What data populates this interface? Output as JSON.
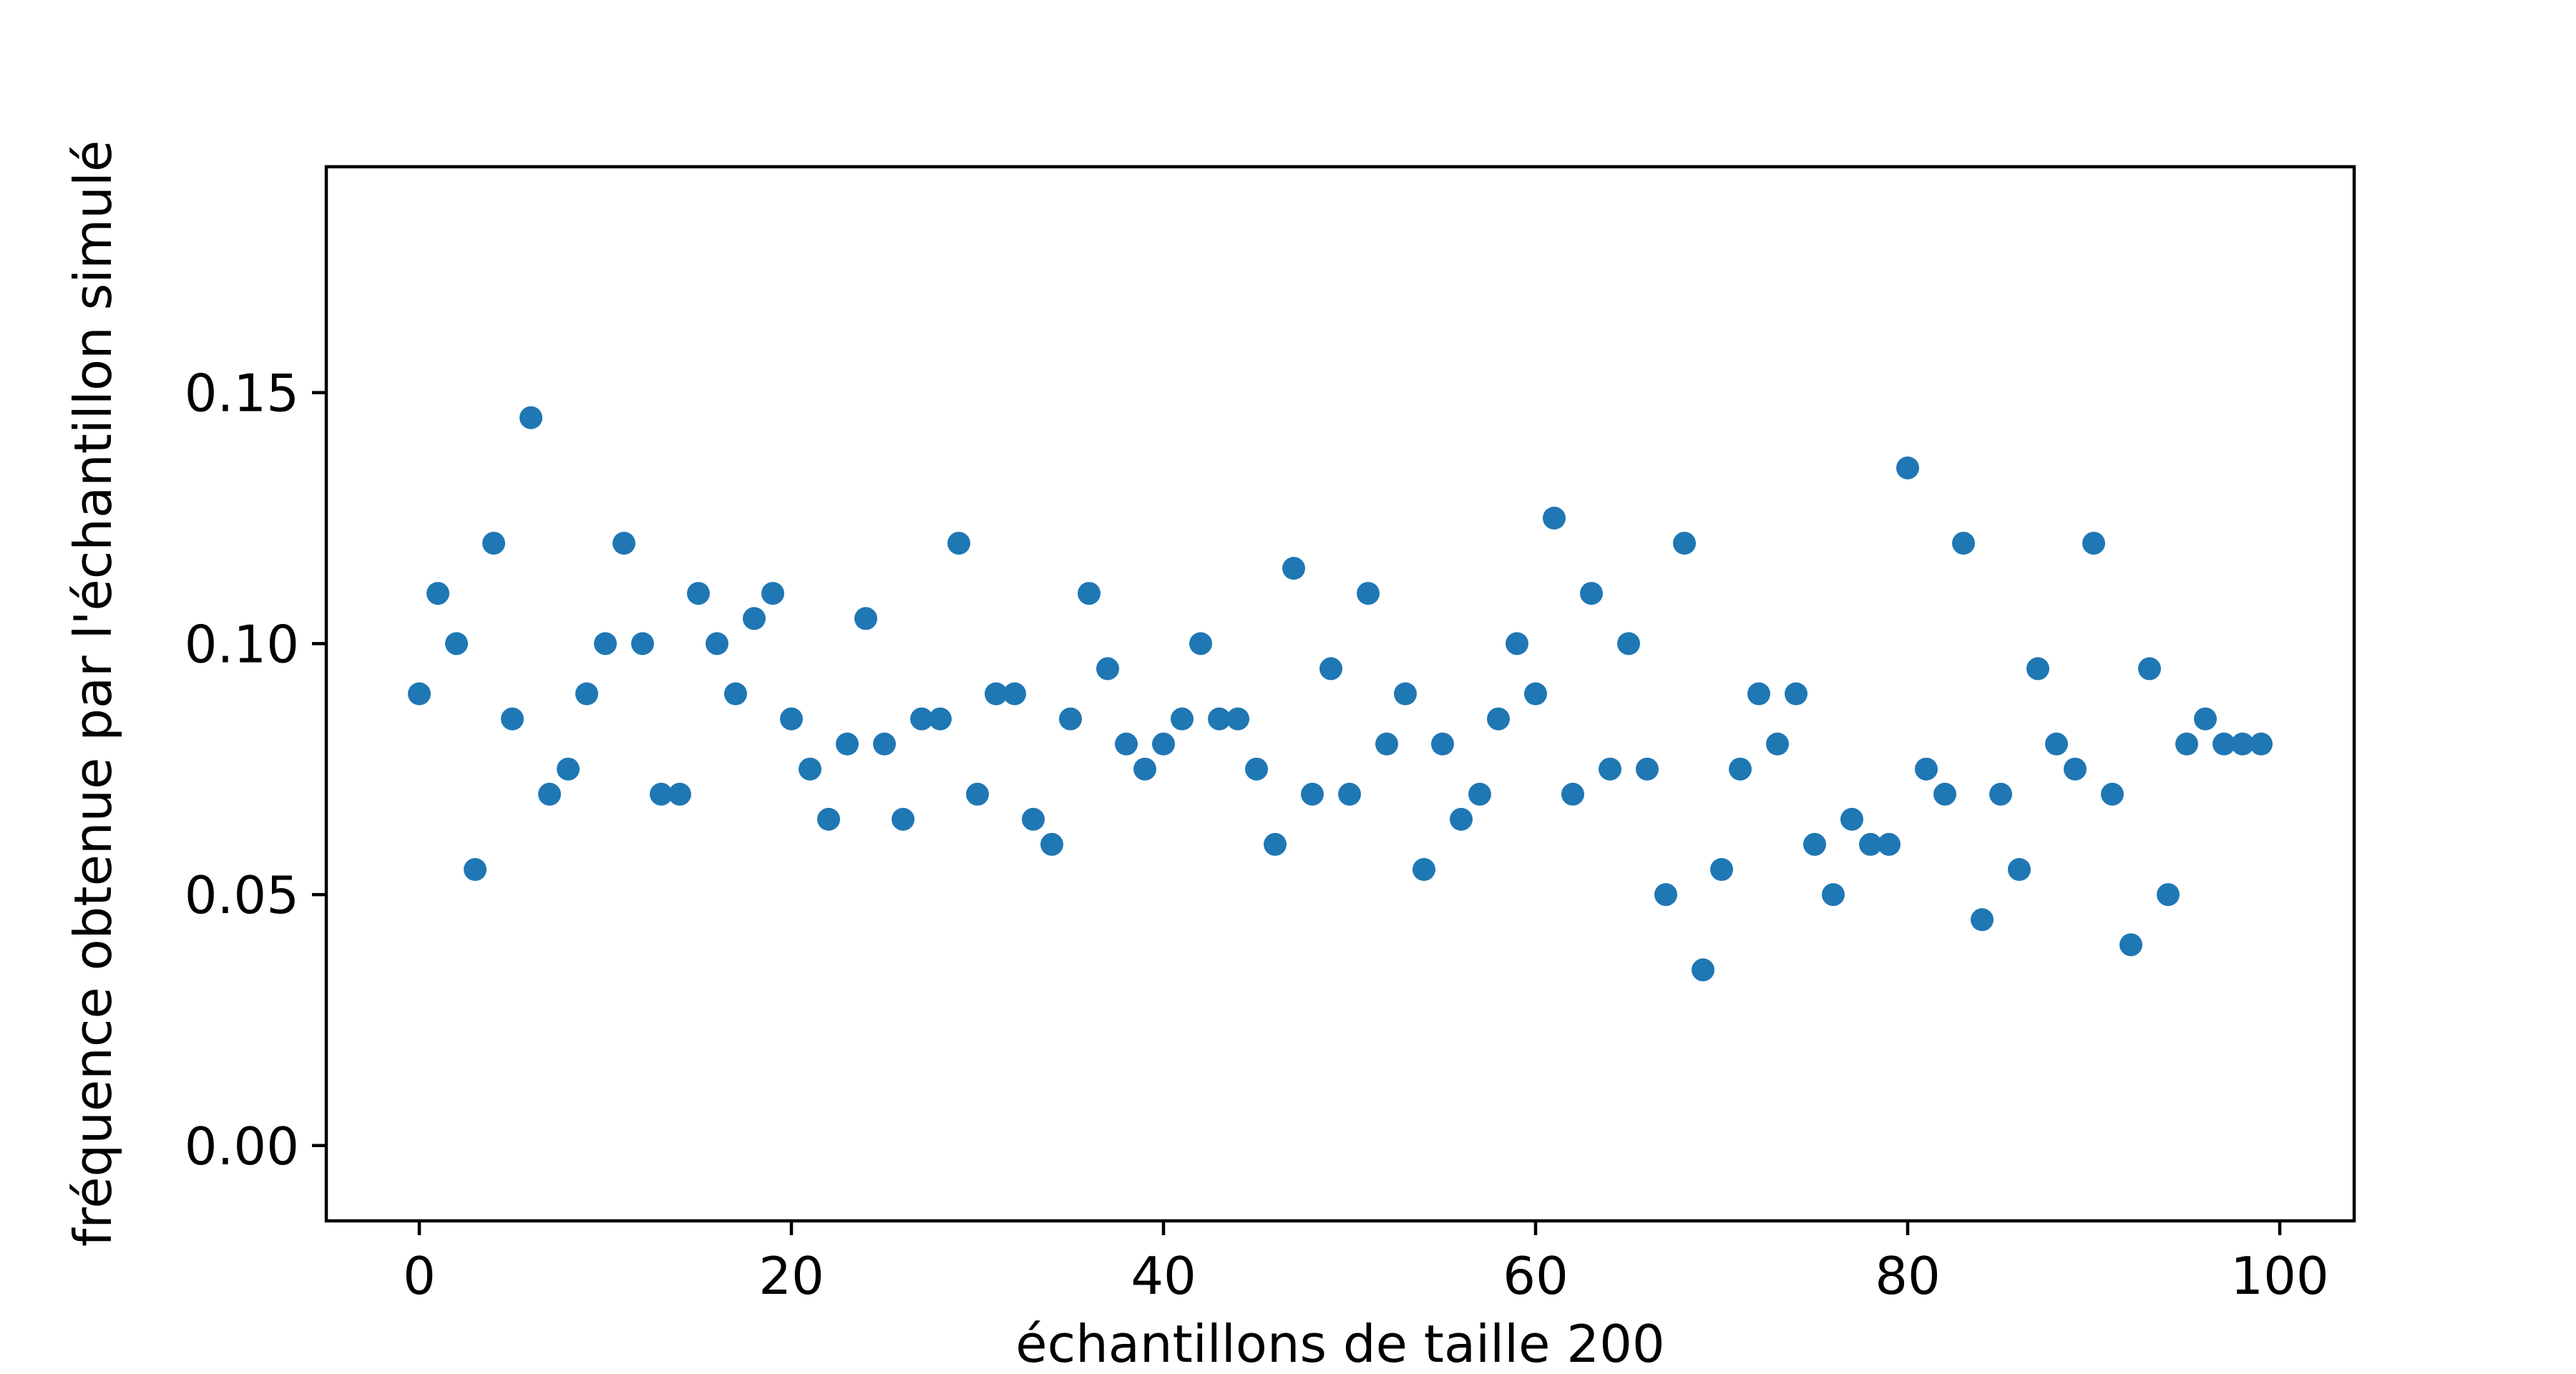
{
  "chart_data": {
    "type": "scatter",
    "title": "",
    "xlabel": "échantillons de taille 200",
    "ylabel": "fréquence obtenue par l'échantillon simulé",
    "xlim": [
      -5,
      104
    ],
    "ylim": [
      -0.015,
      0.195
    ],
    "xticks": [
      0,
      20,
      40,
      60,
      80,
      100
    ],
    "xtick_labels": [
      "0",
      "20",
      "40",
      "60",
      "80",
      "100"
    ],
    "yticks": [
      0.0,
      0.05,
      0.1,
      0.15
    ],
    "ytick_labels": [
      "0.00",
      "0.05",
      "0.10",
      "0.15"
    ],
    "grid": false,
    "marker_color": "#1f77b4",
    "series": [
      {
        "x": [
          0,
          1,
          2,
          3,
          4,
          5,
          6,
          7,
          8,
          9,
          10,
          11,
          12,
          13,
          14,
          15,
          16,
          17,
          18,
          19,
          20,
          21,
          22,
          23,
          24,
          25,
          26,
          27,
          28,
          29,
          30,
          31,
          32,
          33,
          34,
          35,
          36,
          37,
          38,
          39,
          40,
          41,
          42,
          43,
          44,
          45,
          46,
          47,
          48,
          49,
          50,
          51,
          52,
          53,
          54,
          55,
          56,
          57,
          58,
          59,
          60,
          61,
          62,
          63,
          64,
          65,
          66,
          67,
          68,
          69,
          70,
          71,
          72,
          73,
          74,
          75,
          76,
          77,
          78,
          79,
          80,
          81,
          82,
          83,
          84,
          85,
          86,
          87,
          88,
          89,
          90,
          91,
          92,
          93,
          94,
          95,
          96,
          97,
          98,
          99
        ],
        "y": [
          0.09,
          0.11,
          0.1,
          0.055,
          0.12,
          0.085,
          0.145,
          0.07,
          0.075,
          0.09,
          0.1,
          0.12,
          0.1,
          0.07,
          0.07,
          0.11,
          0.1,
          0.09,
          0.105,
          0.11,
          0.085,
          0.075,
          0.065,
          0.08,
          0.105,
          0.08,
          0.065,
          0.085,
          0.085,
          0.12,
          0.07,
          0.09,
          0.09,
          0.065,
          0.06,
          0.085,
          0.11,
          0.095,
          0.08,
          0.075,
          0.08,
          0.085,
          0.1,
          0.085,
          0.085,
          0.075,
          0.06,
          0.115,
          0.07,
          0.095,
          0.07,
          0.11,
          0.08,
          0.09,
          0.055,
          0.08,
          0.065,
          0.07,
          0.085,
          0.1,
          0.09,
          0.125,
          0.07,
          0.11,
          0.075,
          0.1,
          0.075,
          0.05,
          0.12,
          0.035,
          0.055,
          0.075,
          0.09,
          0.08,
          0.09,
          0.06,
          0.05,
          0.065,
          0.06,
          0.06,
          0.135,
          0.075,
          0.07,
          0.12,
          0.045,
          0.07,
          0.055,
          0.095,
          0.08,
          0.075,
          0.12,
          0.07,
          0.04,
          0.095,
          0.05,
          0.08,
          0.085,
          0.08,
          0.08,
          0.08
        ]
      }
    ]
  }
}
